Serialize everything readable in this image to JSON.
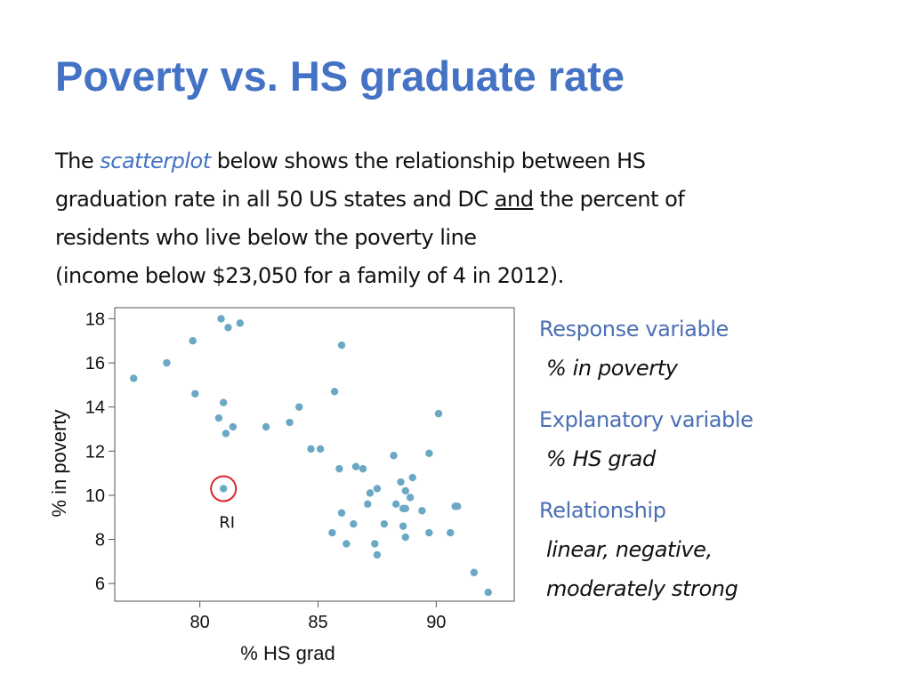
{
  "slide": {
    "title": "Poverty vs. HS graduate rate",
    "intro": {
      "p1": "The ",
      "scatterplot": "scatterplot",
      "p2": " below shows the relationship between HS",
      "p3": "graduation rate in all 50 US states and DC ",
      "and": "and",
      "p4": " the percent of",
      "p5": "residents who live below the poverty line",
      "p6": "(income below $23,050 for a family of 4 in 2012)."
    },
    "sidebar": {
      "response_head": "Response variable",
      "response_val": "% in poverty",
      "explanatory_head": "Explanatory variable",
      "explanatory_val": "% HS grad",
      "relationship_head": "Relationship",
      "relationship_val1": "linear, negative,",
      "relationship_val2": "moderately strong"
    }
  },
  "chart_data": {
    "type": "scatter",
    "xlabel": "% HS grad",
    "ylabel": "% in poverty",
    "xlim": [
      76.4,
      93.3
    ],
    "ylim": [
      5.2,
      18.5
    ],
    "xticks": [
      80,
      85,
      90
    ],
    "yticks": [
      6,
      8,
      10,
      12,
      14,
      16,
      18
    ],
    "grid": false,
    "annotation": {
      "label": "RI",
      "x": 81.0,
      "y": 10.3
    },
    "colors": {
      "point": "#6aa8c4",
      "highlight": "#d8262a",
      "axis": "#555555"
    },
    "points": [
      [
        77.2,
        15.3
      ],
      [
        78.6,
        16.0
      ],
      [
        79.7,
        17.0
      ],
      [
        79.8,
        14.6
      ],
      [
        80.9,
        18.0
      ],
      [
        81.2,
        17.6
      ],
      [
        81.7,
        17.8
      ],
      [
        80.8,
        13.5
      ],
      [
        81.0,
        14.2
      ],
      [
        81.1,
        12.8
      ],
      [
        81.4,
        13.1
      ],
      [
        82.8,
        13.1
      ],
      [
        83.8,
        13.3
      ],
      [
        84.2,
        14.0
      ],
      [
        84.7,
        12.1
      ],
      [
        85.1,
        12.1
      ],
      [
        85.7,
        14.7
      ],
      [
        86.0,
        16.8
      ],
      [
        85.9,
        11.2
      ],
      [
        86.6,
        11.3
      ],
      [
        86.9,
        11.2
      ],
      [
        88.2,
        11.8
      ],
      [
        89.7,
        11.9
      ],
      [
        90.1,
        13.7
      ],
      [
        81.0,
        10.3
      ],
      [
        86.0,
        9.2
      ],
      [
        86.5,
        8.7
      ],
      [
        85.6,
        8.3
      ],
      [
        86.2,
        7.8
      ],
      [
        87.2,
        10.1
      ],
      [
        87.5,
        10.3
      ],
      [
        87.1,
        9.6
      ],
      [
        87.4,
        7.8
      ],
      [
        87.5,
        7.3
      ],
      [
        87.8,
        8.7
      ],
      [
        88.3,
        9.6
      ],
      [
        88.5,
        10.6
      ],
      [
        88.7,
        10.2
      ],
      [
        88.9,
        9.9
      ],
      [
        88.6,
        9.4
      ],
      [
        88.7,
        9.4
      ],
      [
        88.6,
        8.6
      ],
      [
        88.7,
        8.1
      ],
      [
        89.0,
        10.8
      ],
      [
        89.4,
        9.3
      ],
      [
        89.7,
        8.3
      ],
      [
        90.6,
        8.3
      ],
      [
        90.8,
        9.5
      ],
      [
        90.9,
        9.5
      ],
      [
        91.6,
        6.5
      ],
      [
        92.2,
        5.6
      ]
    ]
  }
}
